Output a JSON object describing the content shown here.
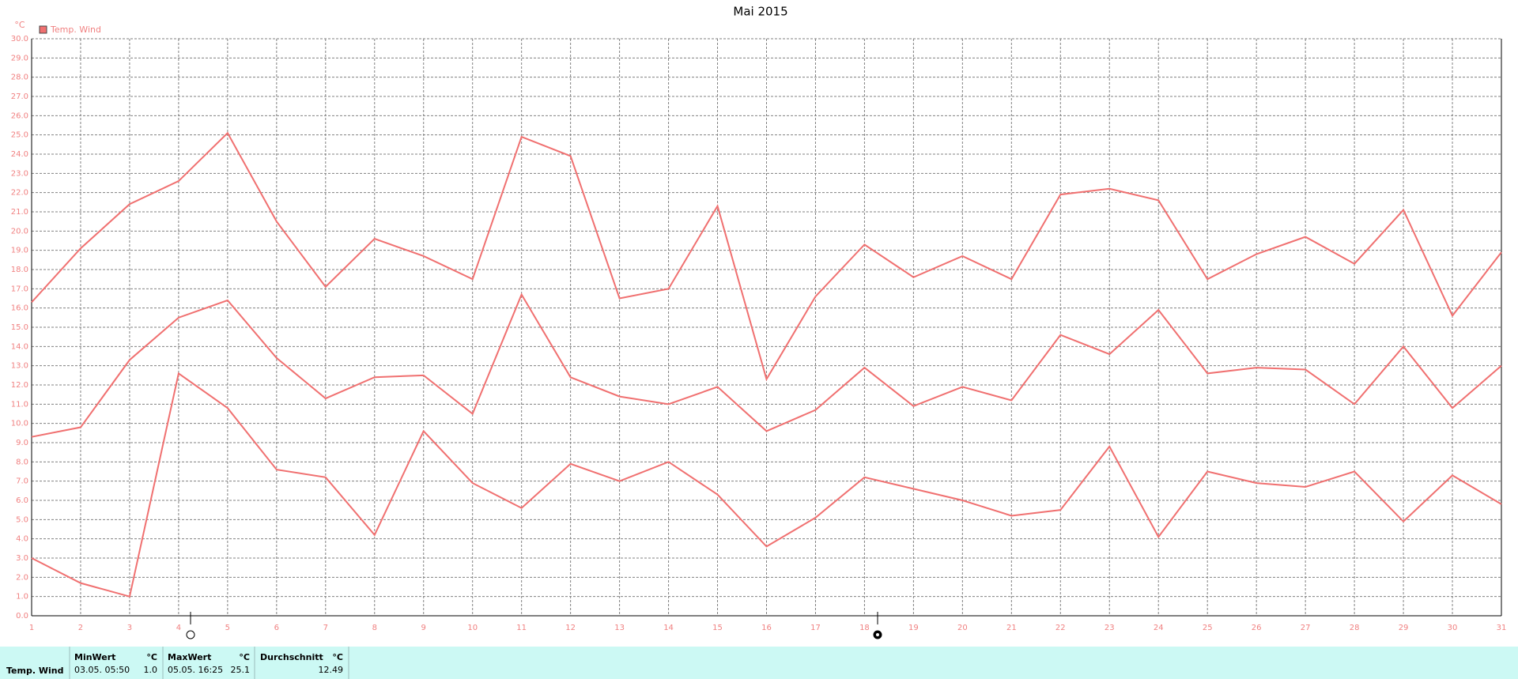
{
  "chart_data": {
    "type": "line",
    "title": "Mai 2015",
    "y_unit": "°C",
    "legend": "Temp. Wind",
    "x": [
      1,
      2,
      3,
      4,
      5,
      6,
      7,
      8,
      9,
      10,
      11,
      12,
      13,
      14,
      15,
      16,
      17,
      18,
      19,
      20,
      21,
      22,
      23,
      24,
      25,
      26,
      27,
      28,
      29,
      30,
      31
    ],
    "xlim": [
      1,
      31
    ],
    "xticks": [
      1,
      2,
      3,
      4,
      5,
      6,
      7,
      8,
      9,
      10,
      11,
      12,
      13,
      14,
      15,
      16,
      17,
      18,
      19,
      20,
      21,
      22,
      23,
      24,
      25,
      26,
      27,
      28,
      29,
      30,
      31
    ],
    "ylim": [
      0,
      30
    ],
    "yticks": [
      {
        "value": 0,
        "label": "0.0"
      },
      {
        "value": 1,
        "label": "1.0"
      },
      {
        "value": 2,
        "label": "2.0"
      },
      {
        "value": 3,
        "label": "3.0"
      },
      {
        "value": 4,
        "label": "4.0"
      },
      {
        "value": 5,
        "label": "5.0"
      },
      {
        "value": 6,
        "label": "6.0"
      },
      {
        "value": 7,
        "label": "7.0"
      },
      {
        "value": 8,
        "label": "8.0"
      },
      {
        "value": 9,
        "label": "9.0"
      },
      {
        "value": 10,
        "label": "10.0"
      },
      {
        "value": 11,
        "label": "11.0"
      },
      {
        "value": 12,
        "label": "12.0"
      },
      {
        "value": 13,
        "label": "13.0"
      },
      {
        "value": 14,
        "label": "14.0"
      },
      {
        "value": 15,
        "label": "15.0"
      },
      {
        "value": 16,
        "label": "16.0"
      },
      {
        "value": 17,
        "label": "17.0"
      },
      {
        "value": 18,
        "label": "18.0"
      },
      {
        "value": 19,
        "label": "19.0"
      },
      {
        "value": 20,
        "label": "20.0"
      },
      {
        "value": 21,
        "label": "21.0"
      },
      {
        "value": 22,
        "label": "22.0"
      },
      {
        "value": 23,
        "label": "23.0"
      },
      {
        "value": 24,
        "label": "24.0"
      },
      {
        "value": 25,
        "label": "25.0"
      },
      {
        "value": 26,
        "label": "26.0"
      },
      {
        "value": 27,
        "label": "27.0"
      },
      {
        "value": 28,
        "label": "28.0"
      },
      {
        "value": 29,
        "label": "29.0"
      },
      {
        "value": 30,
        "label": "30.0"
      }
    ],
    "grid": true,
    "color": "#f07070",
    "series": [
      {
        "color": "#f07070",
        "values": [
          16.3,
          19.1,
          21.4,
          22.6,
          25.1,
          20.5,
          17.1,
          19.6,
          18.7,
          17.5,
          24.9,
          23.9,
          16.5,
          17.0,
          21.3,
          12.3,
          16.6,
          19.3,
          17.6,
          18.7,
          17.5,
          21.9,
          22.2,
          21.6,
          17.5,
          18.8,
          19.7,
          18.3,
          21.1,
          15.6,
          18.9
        ]
      },
      {
        "color": "#f07070",
        "values": [
          9.3,
          9.8,
          13.3,
          15.5,
          16.4,
          13.4,
          11.3,
          12.4,
          12.5,
          10.5,
          16.7,
          12.4,
          11.4,
          11.0,
          11.9,
          9.6,
          10.7,
          12.9,
          10.9,
          11.9,
          11.2,
          14.6,
          13.6,
          15.9,
          12.6,
          12.9,
          12.8,
          11.0,
          14.0,
          10.8,
          13.0
        ]
      },
      {
        "color": "#f07070",
        "values": [
          3.0,
          1.7,
          1.0,
          12.6,
          10.8,
          7.6,
          7.2,
          4.2,
          9.6,
          6.9,
          5.6,
          7.9,
          7.0,
          8.0,
          6.3,
          3.6,
          5.1,
          7.2,
          6.6,
          6.0,
          5.2,
          5.5,
          8.8,
          4.1,
          7.5,
          6.9,
          6.7,
          7.5,
          4.9,
          7.3,
          5.8
        ]
      }
    ]
  },
  "summary": {
    "label": "Temp. Wind",
    "min": {
      "header": "MinWert",
      "unit": "°C",
      "time": "03.05.  05:50",
      "value": "1.0"
    },
    "max": {
      "header": "MaxWert",
      "unit": "°C",
      "time": "05.05.  16:25",
      "value": "25.1"
    },
    "avg": {
      "header": "Durchschnitt",
      "unit": "°C",
      "value": "12.49"
    }
  }
}
